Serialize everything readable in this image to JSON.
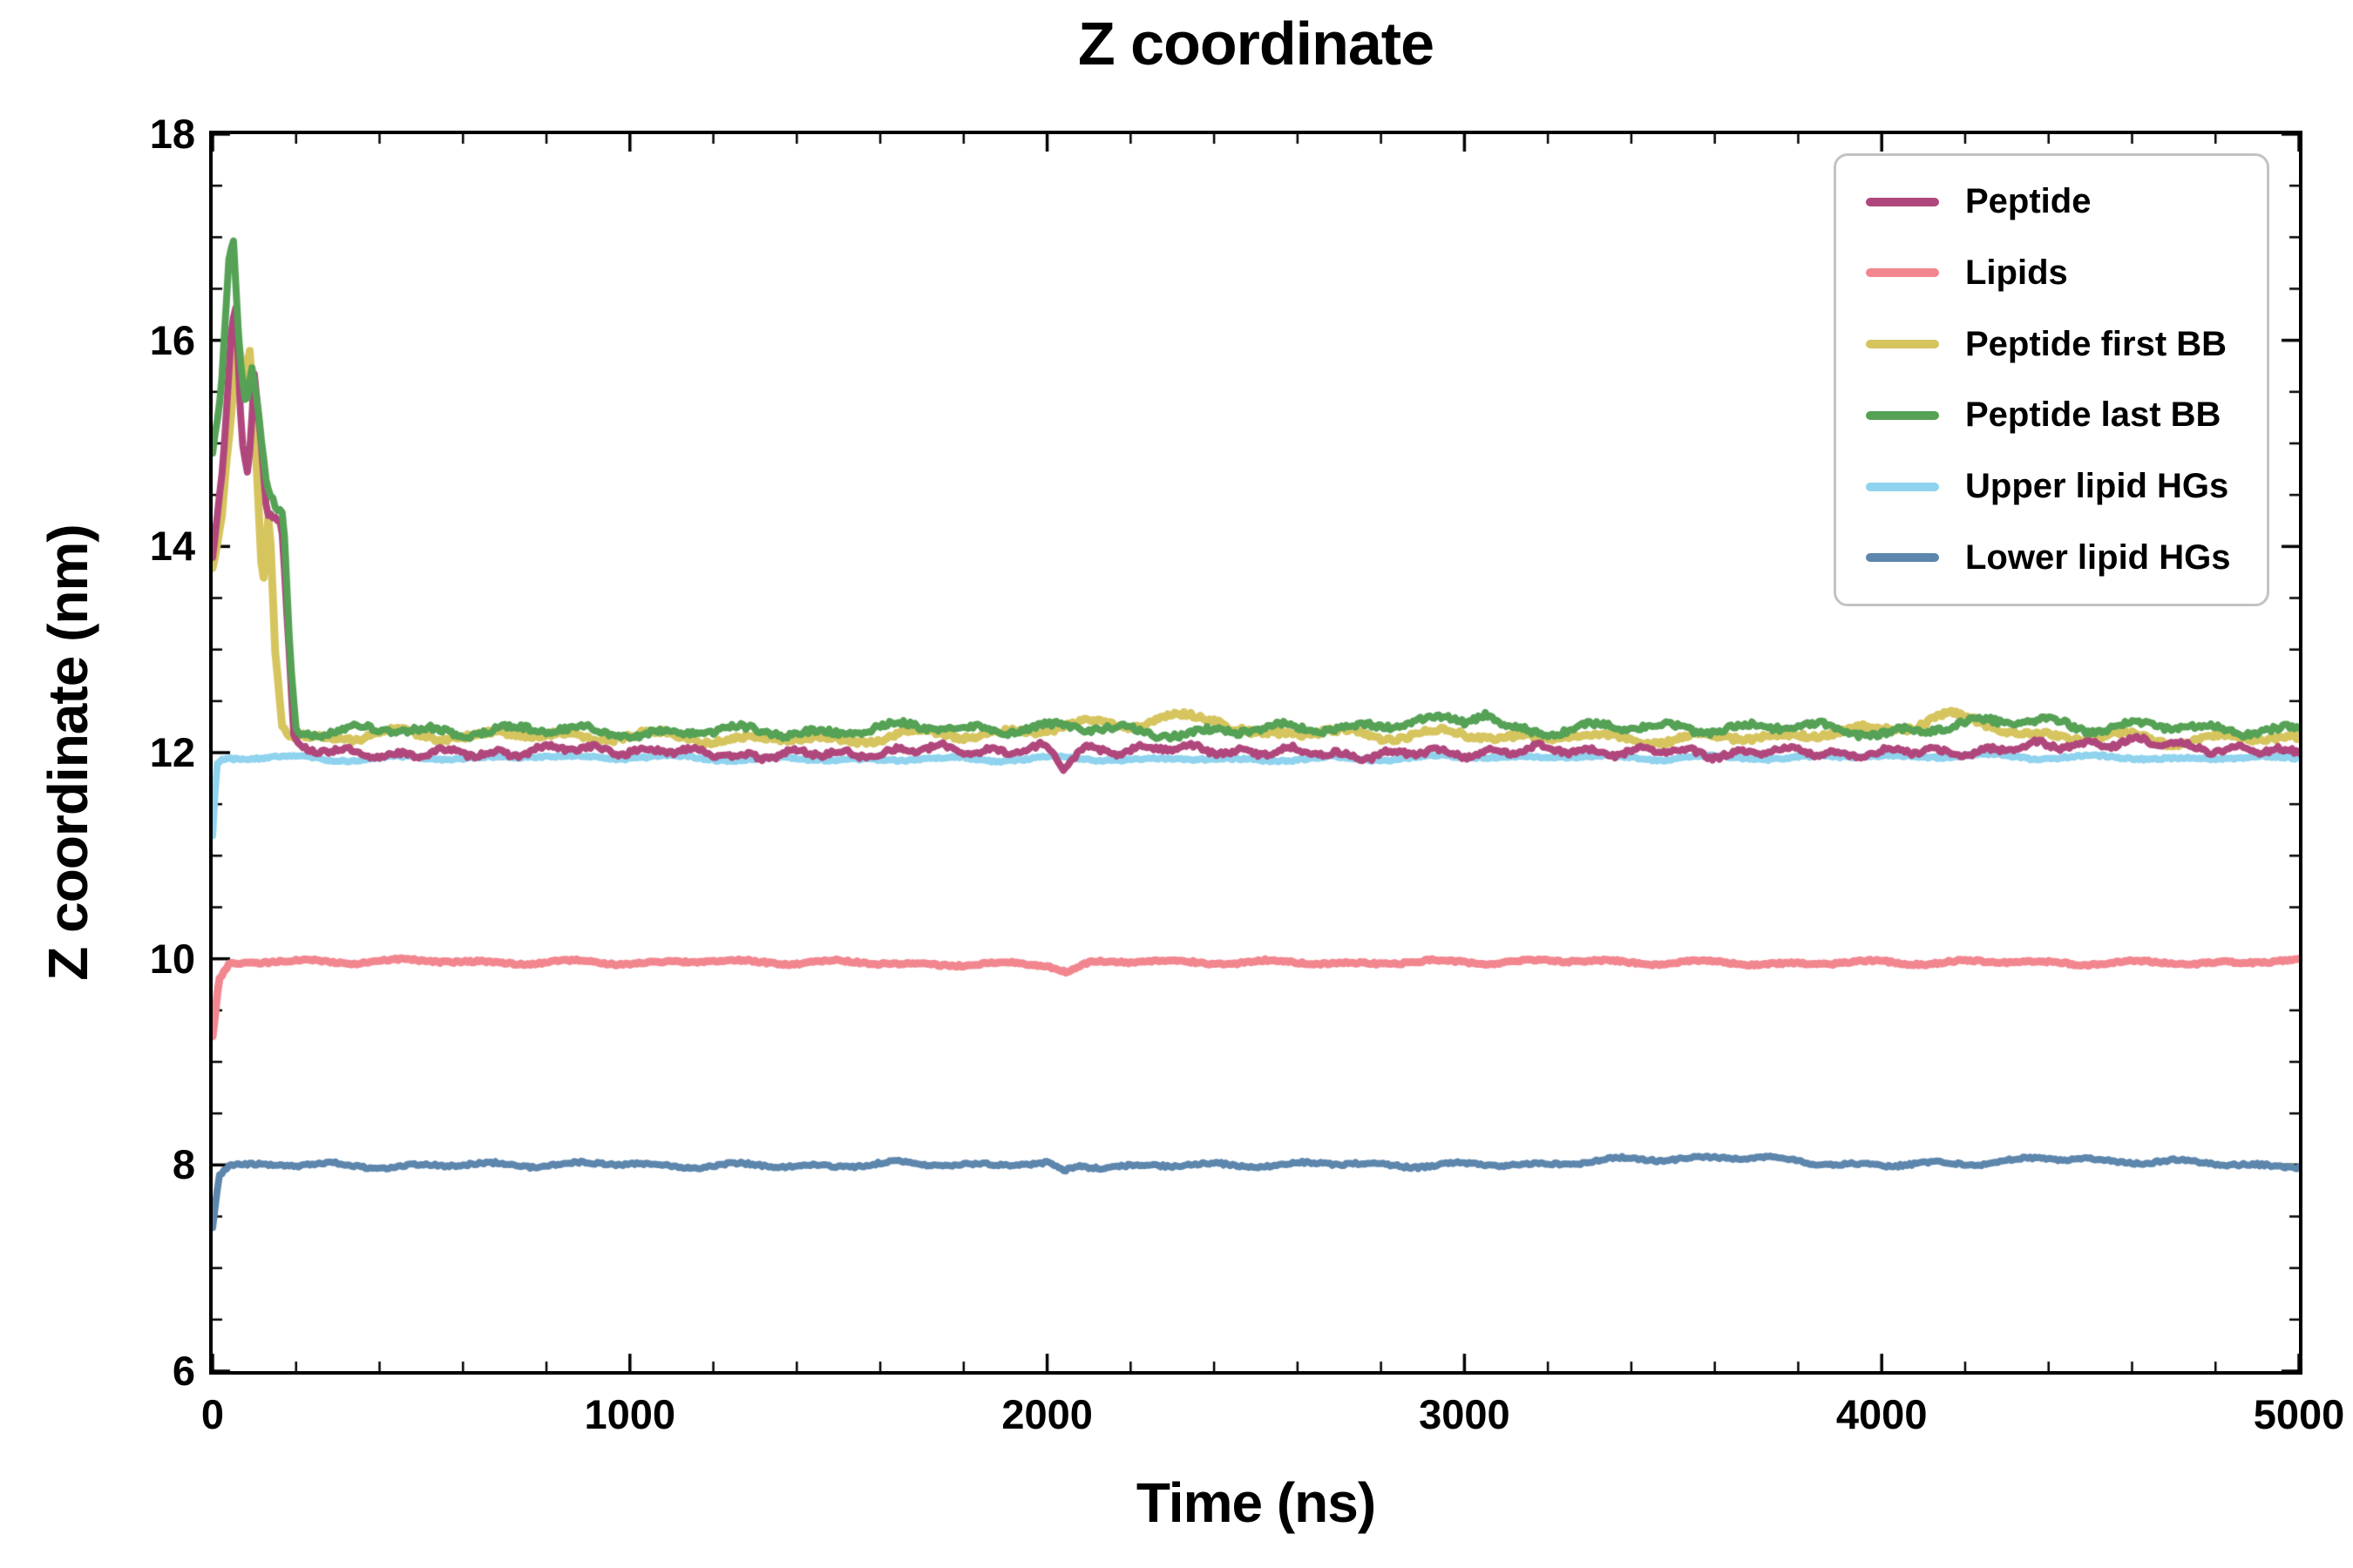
{
  "figure": {
    "background": "#ffffff",
    "axis_color": "#000000"
  },
  "chart_data": {
    "type": "line",
    "title": "Z coordinate",
    "xlabel": "Time (ns)",
    "ylabel": "Z coordinate (nm)",
    "xlim": [
      0,
      5000
    ],
    "ylim": [
      6,
      18
    ],
    "x_ticks": [
      0,
      1000,
      2000,
      3000,
      4000,
      5000
    ],
    "y_ticks": [
      6,
      8,
      10,
      12,
      14,
      16,
      18
    ],
    "x_minor_step": 200,
    "y_minor_step": 0.5,
    "grid": false,
    "legend_position": "upper-right",
    "legend_border_color": "#c3c3c3",
    "series": [
      {
        "name": "Peptide",
        "color": "#b0477c",
        "linewidth": 8,
        "zorder": 5,
        "noise": 0.065,
        "anchors": [
          [
            0,
            13.9
          ],
          [
            25,
            14.8
          ],
          [
            45,
            16.1
          ],
          [
            55,
            16.35
          ],
          [
            70,
            15.0
          ],
          [
            85,
            14.65
          ],
          [
            100,
            15.65
          ],
          [
            115,
            15.1
          ],
          [
            130,
            14.35
          ],
          [
            150,
            14.3
          ],
          [
            165,
            14.25
          ],
          [
            180,
            13.2
          ],
          [
            195,
            12.1
          ],
          [
            220,
            12.0
          ],
          [
            500,
            12.0
          ],
          [
            1000,
            12.02
          ],
          [
            1500,
            11.98
          ],
          [
            2000,
            12.05
          ],
          [
            2040,
            11.85
          ],
          [
            2080,
            12.05
          ],
          [
            2500,
            12.0
          ],
          [
            3000,
            12.0
          ],
          [
            3500,
            12.02
          ],
          [
            4000,
            11.98
          ],
          [
            4300,
            12.05
          ],
          [
            4500,
            12.1
          ],
          [
            5000,
            12.0
          ]
        ]
      },
      {
        "name": "Lipids",
        "color": "#f2868f",
        "linewidth": 9,
        "zorder": 2,
        "noise": 0.03,
        "anchors": [
          [
            0,
            9.25
          ],
          [
            15,
            9.8
          ],
          [
            40,
            9.95
          ],
          [
            100,
            9.97
          ],
          [
            1000,
            9.97
          ],
          [
            2000,
            9.95
          ],
          [
            2050,
            9.88
          ],
          [
            2100,
            9.96
          ],
          [
            3000,
            9.97
          ],
          [
            4000,
            9.96
          ],
          [
            5000,
            9.97
          ]
        ]
      },
      {
        "name": "Peptide first BB",
        "color": "#d6c45e",
        "linewidth": 9,
        "zorder": 4,
        "noise": 0.07,
        "anchors": [
          [
            0,
            13.8
          ],
          [
            20,
            14.2
          ],
          [
            45,
            15.3
          ],
          [
            60,
            16.0
          ],
          [
            75,
            15.6
          ],
          [
            90,
            15.9
          ],
          [
            105,
            14.8
          ],
          [
            120,
            13.6
          ],
          [
            135,
            14.4
          ],
          [
            150,
            13.0
          ],
          [
            165,
            12.3
          ],
          [
            180,
            12.15
          ],
          [
            500,
            12.15
          ],
          [
            1000,
            12.18
          ],
          [
            1500,
            12.12
          ],
          [
            2000,
            12.2
          ],
          [
            2100,
            12.3
          ],
          [
            2400,
            12.35
          ],
          [
            2500,
            12.2
          ],
          [
            3000,
            12.15
          ],
          [
            3500,
            12.15
          ],
          [
            4000,
            12.2
          ],
          [
            4150,
            12.35
          ],
          [
            4300,
            12.2
          ],
          [
            4500,
            12.15
          ],
          [
            5000,
            12.15
          ]
        ]
      },
      {
        "name": "Peptide last BB",
        "color": "#55a155",
        "linewidth": 8,
        "zorder": 6,
        "noise": 0.075,
        "anchors": [
          [
            0,
            14.9
          ],
          [
            20,
            15.5
          ],
          [
            40,
            16.9
          ],
          [
            50,
            17.0
          ],
          [
            65,
            15.9
          ],
          [
            80,
            15.4
          ],
          [
            95,
            15.8
          ],
          [
            110,
            15.3
          ],
          [
            130,
            14.6
          ],
          [
            150,
            14.4
          ],
          [
            170,
            14.3
          ],
          [
            185,
            13.0
          ],
          [
            200,
            12.25
          ],
          [
            250,
            12.2
          ],
          [
            500,
            12.2
          ],
          [
            1000,
            12.22
          ],
          [
            1500,
            12.2
          ],
          [
            2000,
            12.25
          ],
          [
            2500,
            12.2
          ],
          [
            3000,
            12.3
          ],
          [
            3050,
            12.4
          ],
          [
            3100,
            12.25
          ],
          [
            3500,
            12.25
          ],
          [
            4000,
            12.2
          ],
          [
            4400,
            12.35
          ],
          [
            4500,
            12.25
          ],
          [
            5000,
            12.2
          ]
        ]
      },
      {
        "name": "Upper lipid HGs",
        "color": "#8fd3ee",
        "linewidth": 8,
        "zorder": 3,
        "noise": 0.03,
        "anchors": [
          [
            0,
            11.2
          ],
          [
            10,
            11.9
          ],
          [
            30,
            11.95
          ],
          [
            1000,
            11.95
          ],
          [
            2000,
            11.93
          ],
          [
            3000,
            11.95
          ],
          [
            4000,
            11.96
          ],
          [
            5000,
            11.95
          ]
        ]
      },
      {
        "name": "Lower lipid HGs",
        "color": "#5d86ad",
        "linewidth": 8,
        "zorder": 1,
        "noise": 0.035,
        "anchors": [
          [
            0,
            7.4
          ],
          [
            15,
            7.9
          ],
          [
            40,
            8.0
          ],
          [
            1000,
            8.0
          ],
          [
            2000,
            8.0
          ],
          [
            2040,
            7.93
          ],
          [
            2080,
            8.0
          ],
          [
            3000,
            8.0
          ],
          [
            3600,
            8.07
          ],
          [
            4000,
            8.0
          ],
          [
            4400,
            8.05
          ],
          [
            5000,
            8.0
          ]
        ]
      }
    ]
  }
}
